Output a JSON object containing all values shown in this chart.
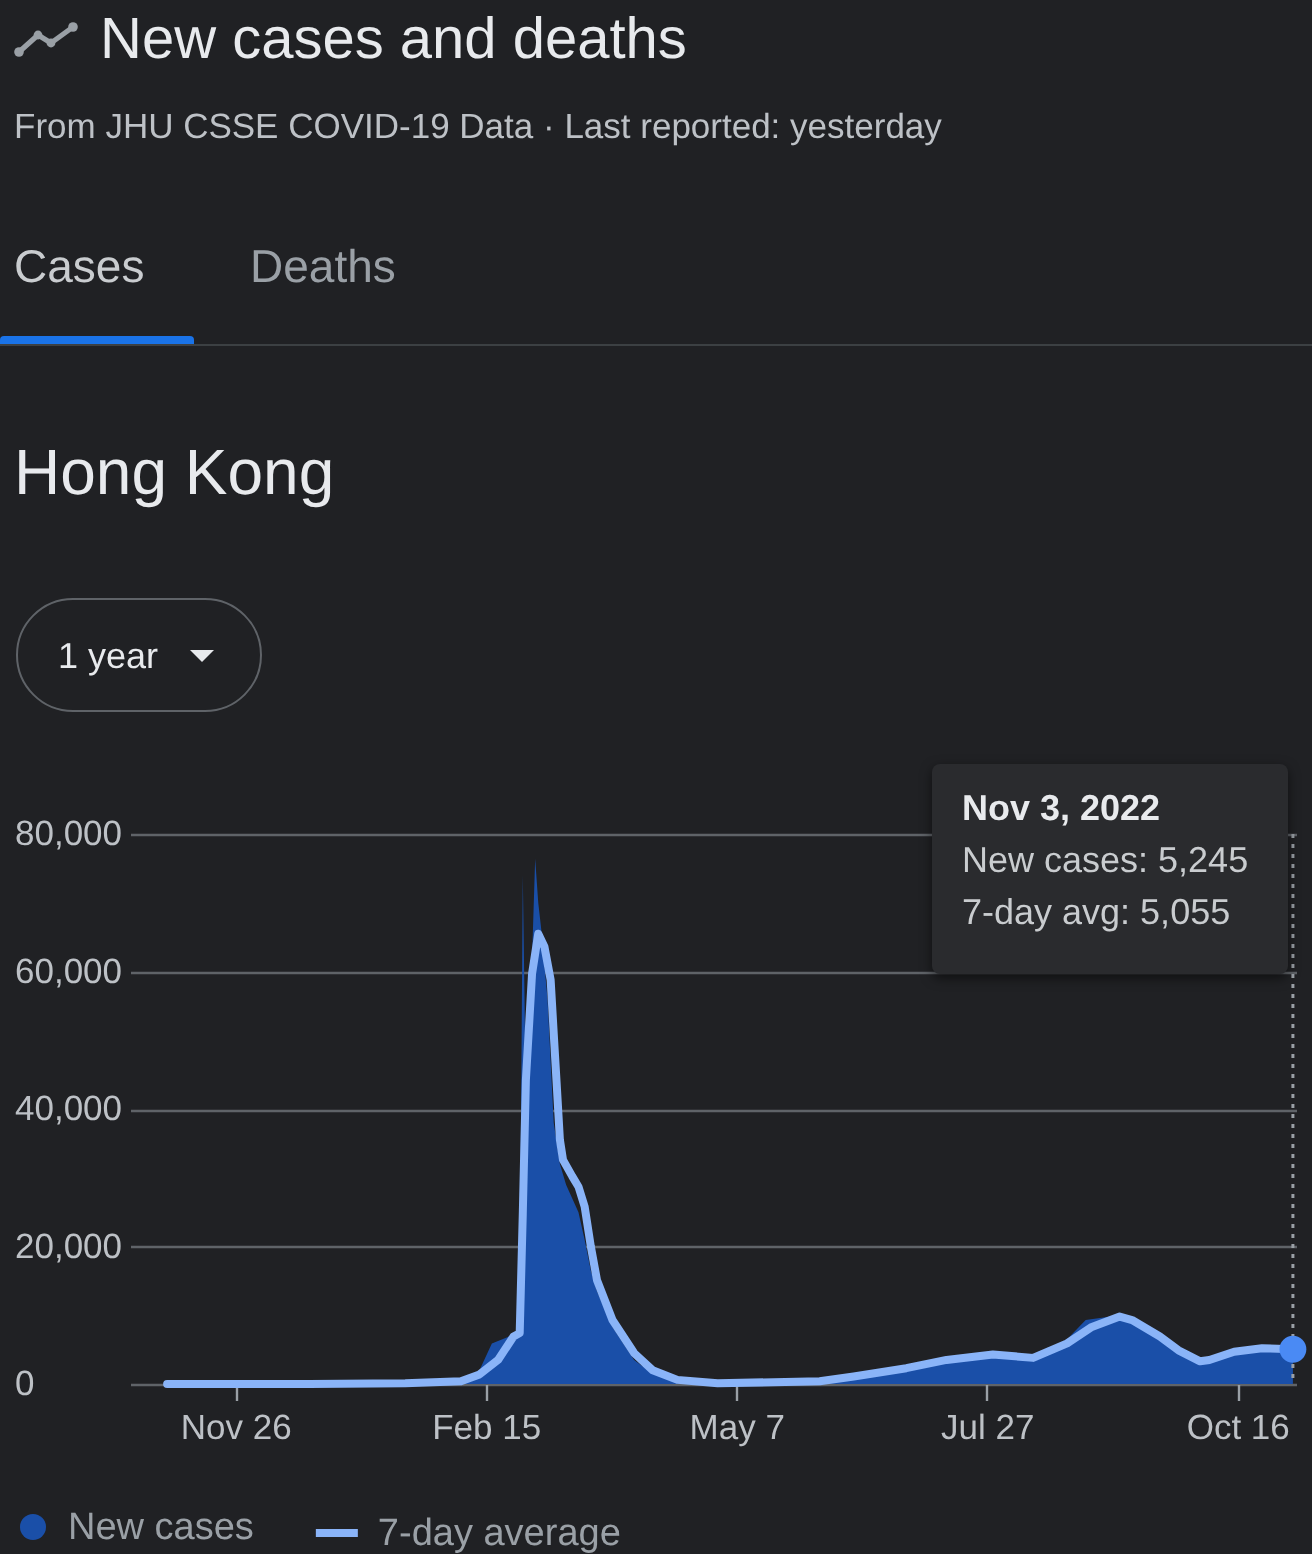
{
  "chart_data": {
    "type": "line",
    "title": "New cases and deaths",
    "subtitle": "From JHU CSSE COVID-19 Data · Last reported: yesterday",
    "annotations": [
      "Cases",
      "Deaths",
      "Hong Kong",
      "1 year",
      "Nov 3, 2022",
      "New cases: 5,245",
      "7-day avg: 5,055"
    ],
    "xlim": [
      "2021-10-23",
      "2022-11-04"
    ],
    "xticks": [
      {
        "value": "2021-11-26",
        "label": "Nov 26"
      },
      {
        "value": "2022-02-15",
        "label": "Feb 15"
      },
      {
        "value": "2022-05-07",
        "label": "May 7"
      },
      {
        "value": "2022-07-27",
        "label": "Jul 27"
      },
      {
        "value": "2022-10-16",
        "label": "Oct 16"
      }
    ],
    "ylim": [
      0,
      80000
    ],
    "yticks": [
      0,
      {
        "value": 20000,
        "label": "20,000"
      },
      {
        "value": 40000,
        "label": "40,000"
      },
      {
        "value": 60000,
        "label": "60,000"
      },
      {
        "value": 80000,
        "label": "80,000"
      }
    ],
    "grid": "y",
    "legend": "bottom left",
    "ref_lines": [
      {
        "axis": "x",
        "value": "2022-11-03",
        "color": "#9aa0a6",
        "line_style": "dotted"
      }
    ],
    "series": [
      {
        "name": "New cases",
        "type": "area",
        "color": "#1a4fa8",
        "x": [
          "2021-11-04",
          "2022-01-20",
          "2022-02-07",
          "2022-02-13",
          "2022-02-17",
          "2022-02-22",
          "2022-02-25",
          "2022-02-26",
          "2022-02-27",
          "2022-02-28",
          "2022-03-01",
          "2022-03-02",
          "2022-03-03",
          "2022-03-04",
          "2022-03-05",
          "2022-03-07",
          "2022-03-09",
          "2022-03-11",
          "2022-03-13",
          "2022-03-15",
          "2022-03-17",
          "2022-03-19",
          "2022-03-21",
          "2022-03-23",
          "2022-03-28",
          "2022-04-04",
          "2022-04-10",
          "2022-04-18",
          "2022-05-01",
          "2022-06-03",
          "2022-06-14",
          "2022-07-01",
          "2022-07-14",
          "2022-07-29",
          "2022-08-11",
          "2022-08-22",
          "2022-08-28",
          "2022-09-08",
          "2022-09-12",
          "2022-09-16",
          "2022-09-21",
          "2022-09-27",
          "2022-10-04",
          "2022-10-07",
          "2022-10-15",
          "2022-10-24",
          "2022-11-03"
        ],
        "values": [
          0,
          100,
          600,
          2000,
          5900,
          6800,
          7500,
          12000,
          74000,
          42000,
          50000,
          62000,
          76400,
          70000,
          66000,
          56000,
          38000,
          32000,
          29000,
          27000,
          25000,
          21000,
          16500,
          13500,
          8300,
          3500,
          1500,
          500,
          200,
          500,
          1200,
          2500,
          3800,
          4500,
          4000,
          6500,
          9300,
          10000,
          9000,
          8000,
          6500,
          4700,
          3200,
          3600,
          5000,
          5300,
          5245
        ]
      },
      {
        "name": "7-day average",
        "color": "#8ab4f8",
        "x": [
          "2021-11-04",
          "2021-12-20",
          "2022-01-20",
          "2022-02-07",
          "2022-02-13",
          "2022-02-19",
          "2022-02-24",
          "2022-02-26",
          "2022-02-27",
          "2022-02-28",
          "2022-03-02",
          "2022-03-04",
          "2022-03-06",
          "2022-03-08",
          "2022-03-09",
          "2022-03-10",
          "2022-03-11",
          "2022-03-12",
          "2022-03-15",
          "2022-03-17",
          "2022-03-19",
          "2022-03-21",
          "2022-03-23",
          "2022-03-28",
          "2022-04-04",
          "2022-04-10",
          "2022-04-18",
          "2022-05-01",
          "2022-06-03",
          "2022-06-14",
          "2022-07-01",
          "2022-07-14",
          "2022-07-29",
          "2022-08-11",
          "2022-08-22",
          "2022-08-30",
          "2022-09-08",
          "2022-09-12",
          "2022-09-21",
          "2022-09-27",
          "2022-10-04",
          "2022-10-07",
          "2022-10-15",
          "2022-10-24",
          "2022-11-03"
        ],
        "values": [
          0,
          0,
          100,
          400,
          1400,
          3500,
          6900,
          7400,
          24800,
          44200,
          59700,
          65500,
          63600,
          58800,
          51000,
          43300,
          35500,
          32600,
          30200,
          28700,
          25800,
          20000,
          15100,
          9300,
          4500,
          2000,
          600,
          100,
          400,
          1100,
          2300,
          3500,
          4300,
          3800,
          5900,
          8300,
          9800,
          9300,
          6900,
          4900,
          3300,
          3500,
          4700,
          5200,
          5055
        ]
      },
      {
        "type": "scatter",
        "color": "#4a8af4",
        "marker": "circle",
        "x": [
          "2022-11-03"
        ],
        "values": [
          5055
        ]
      }
    ]
  }
}
